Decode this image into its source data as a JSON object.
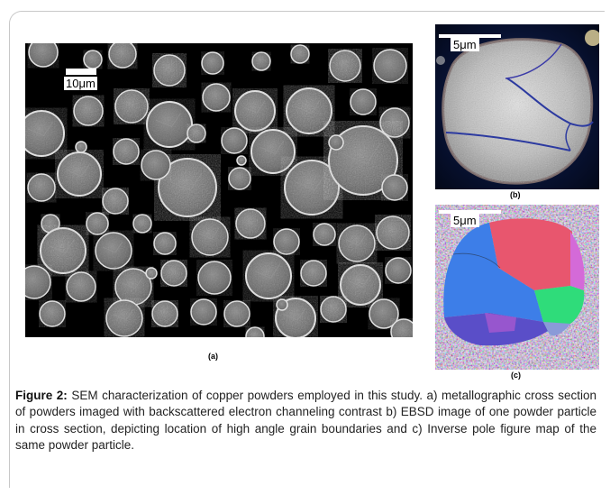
{
  "panels": {
    "a": {
      "label": "(a)",
      "scalebar": "10μm"
    },
    "b": {
      "label": "(b)",
      "scalebar": "5μm"
    },
    "c": {
      "label": "(c)",
      "scalebar": "5μm"
    }
  },
  "caption": {
    "figure_label": "Figure 2:",
    "text": " SEM characterization of copper powders employed in this study. a) metallographic cross section of powders imaged with backscattered electron channeling contrast b) EBSD image of one powder particle in cross section, depicting location of high angle grain boundaries and c) Inverse pole figure map of the same powder particle."
  }
}
